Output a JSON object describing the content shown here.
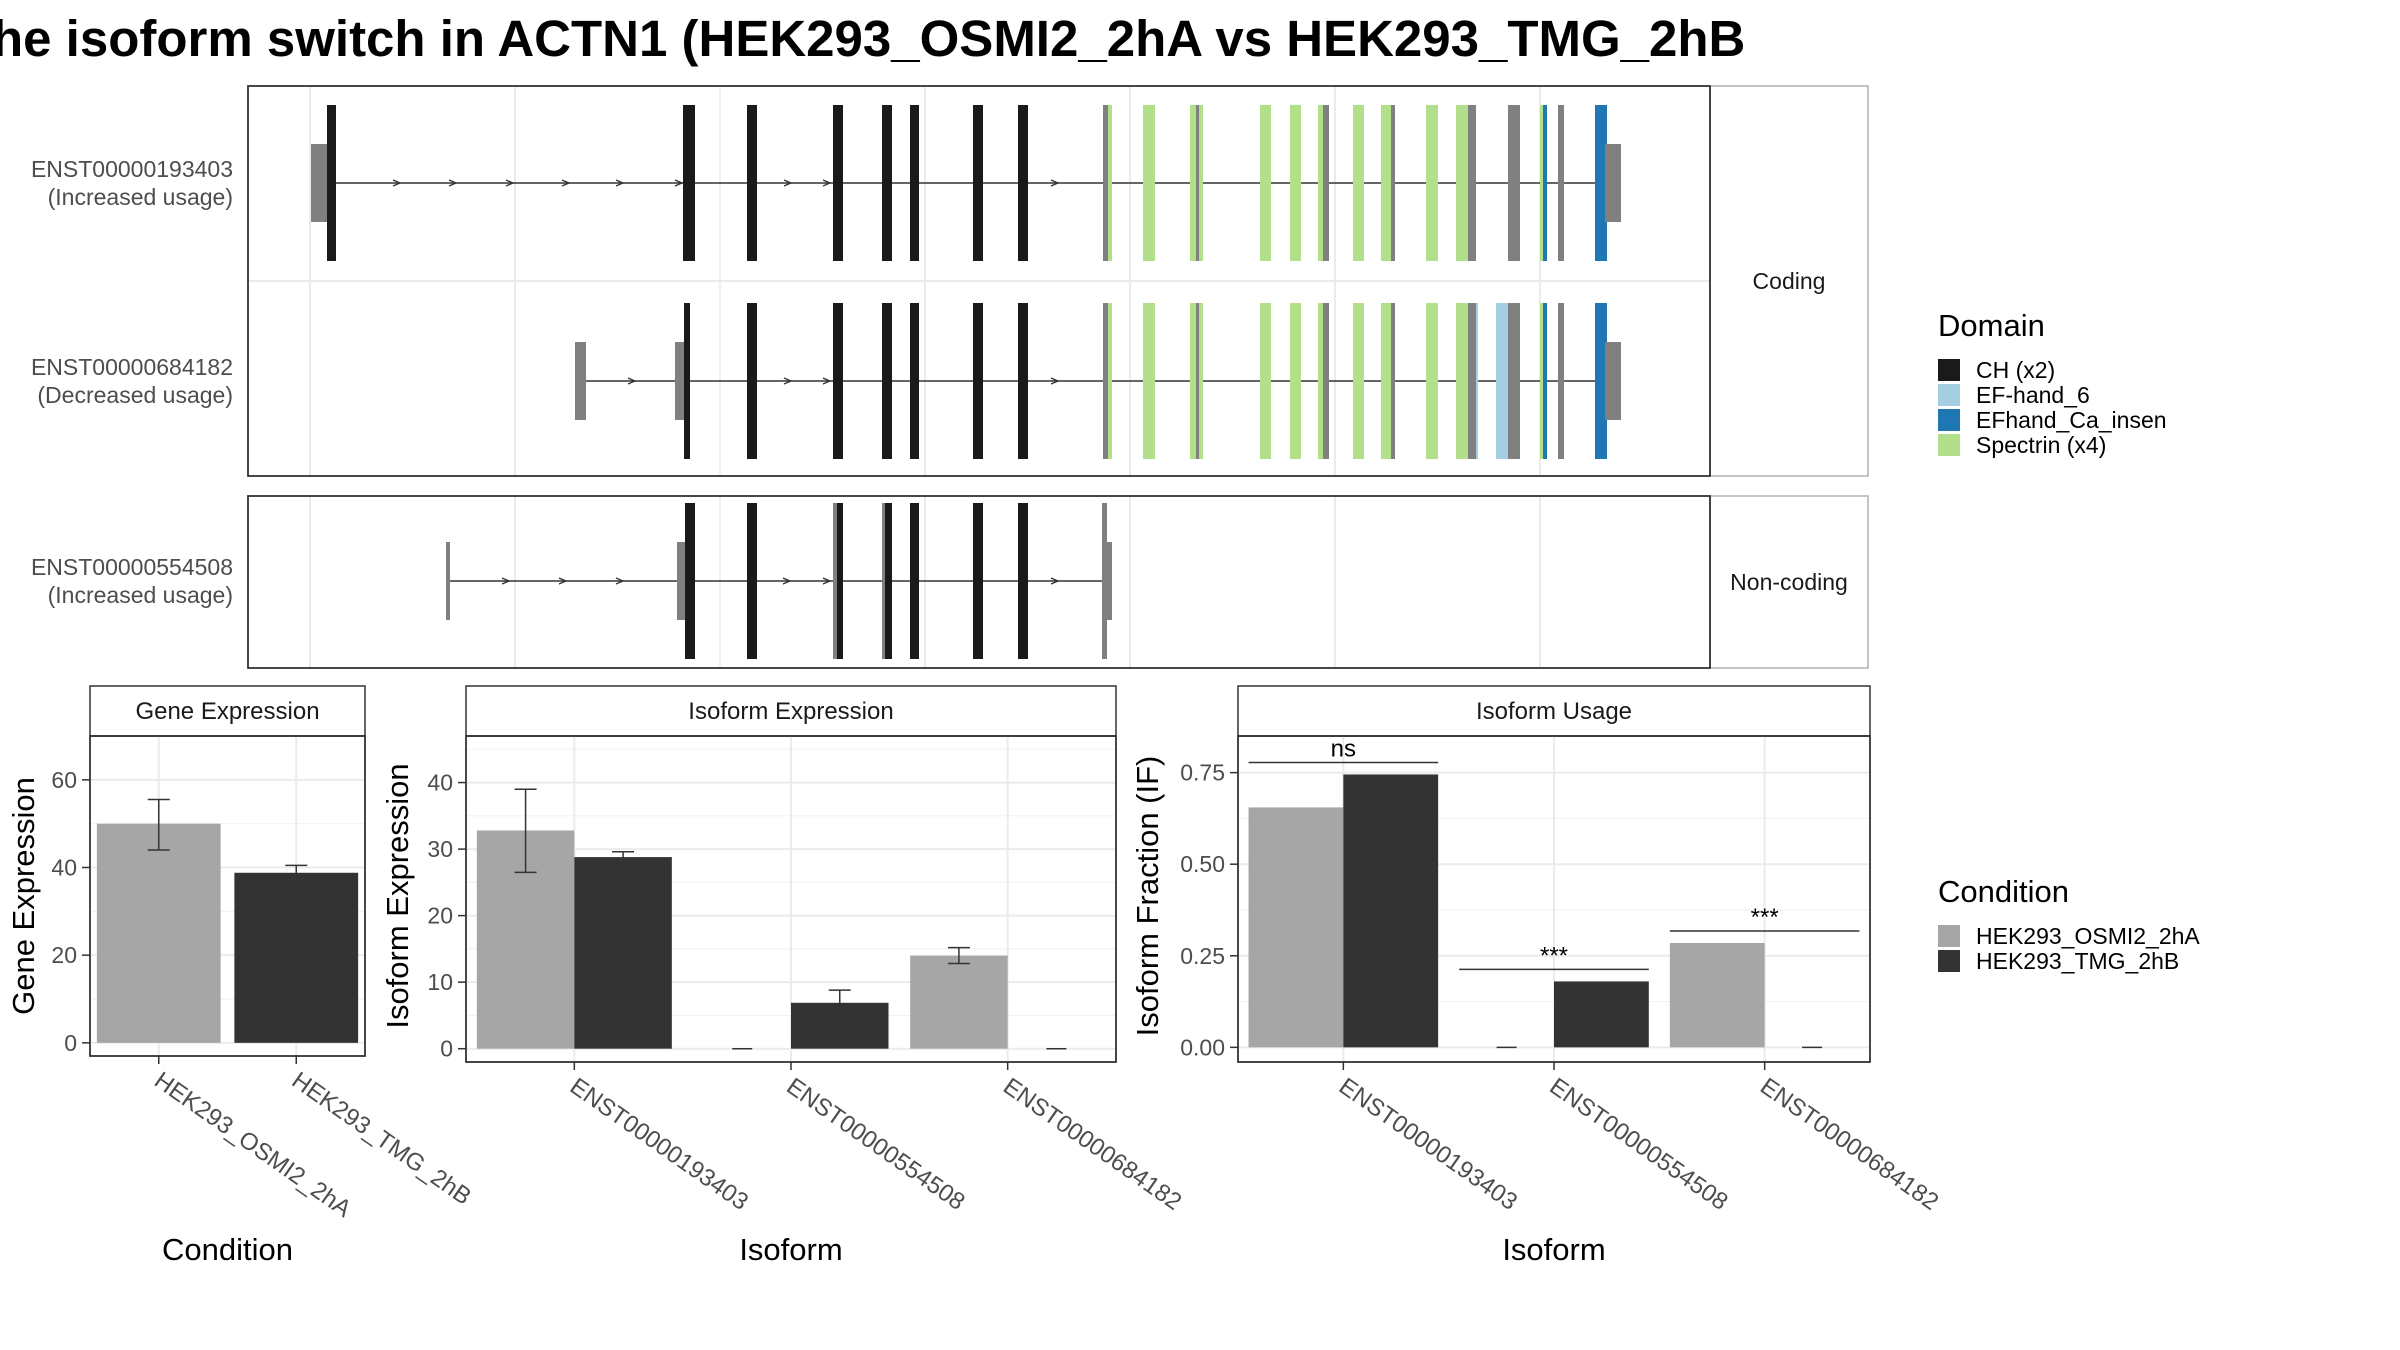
{
  "title": "he isoform switch in ACTN1 (HEK293_OSMI2_2hA vs HEK293_TMG_2hB",
  "structure": {
    "facets": [
      "Coding",
      "Non-coding"
    ],
    "transcripts": [
      {
        "id": "ENST00000193403",
        "usage": "(Increased usage)",
        "facet": "Coding"
      },
      {
        "id": "ENST00000684182",
        "usage": "(Decreased usage)",
        "facet": "Coding"
      },
      {
        "id": "ENST00000554508",
        "usage": "(Increased usage)",
        "facet": "Non-coding"
      }
    ]
  },
  "legends": {
    "domain": {
      "title": "Domain",
      "items": [
        {
          "label": "CH (x2)",
          "color": "#1a1a1a"
        },
        {
          "label": "EF-hand_6",
          "color": "#a6cee3"
        },
        {
          "label": "EFhand_Ca_insen",
          "color": "#1f78b4"
        },
        {
          "label": "Spectrin (x4)",
          "color": "#b2df8a"
        }
      ]
    },
    "condition": {
      "title": "Condition",
      "items": [
        {
          "label": "HEK293_OSMI2_2hA",
          "color": "#a6a6a6"
        },
        {
          "label": "HEK293_TMG_2hB",
          "color": "#333333"
        }
      ]
    }
  },
  "chart_data": [
    {
      "type": "bar",
      "title": "Gene Expression",
      "xlabel": "Condition",
      "ylabel": "Gene Expression",
      "categories": [
        "HEK293_OSMI2_2hA",
        "HEK293_TMG_2hB"
      ],
      "values": [
        50.0,
        38.8
      ],
      "errors": [
        [
          44.0,
          55.5
        ],
        [
          37.0,
          40.5
        ]
      ],
      "yticks": [
        0,
        20,
        40,
        60
      ],
      "ylim": [
        -3,
        70
      ]
    },
    {
      "type": "bar",
      "title": "Isoform Expression",
      "xlabel": "Isoform",
      "ylabel": "Isoform Expression",
      "categories": [
        "ENST00000193403",
        "ENST00000554508",
        "ENST00000684182"
      ],
      "series": [
        {
          "name": "HEK293_OSMI2_2hA",
          "values": [
            32.8,
            0.0,
            14.0
          ],
          "errors": [
            [
              26.5,
              39.0
            ],
            null,
            [
              12.8,
              15.2
            ]
          ]
        },
        {
          "name": "HEK293_TMG_2hB",
          "values": [
            28.8,
            6.9,
            0.0
          ],
          "errors": [
            [
              28.0,
              29.6
            ],
            [
              5.0,
              8.8
            ],
            null
          ]
        }
      ],
      "yticks": [
        0,
        10,
        20,
        30,
        40
      ],
      "ylim": [
        -2,
        47
      ]
    },
    {
      "type": "bar",
      "title": "Isoform Usage",
      "xlabel": "Isoform",
      "ylabel": "Isoform Fraction (IF)",
      "categories": [
        "ENST00000193403",
        "ENST00000554508",
        "ENST00000684182"
      ],
      "series": [
        {
          "name": "HEK293_OSMI2_2hA",
          "values": [
            0.655,
            0.0,
            0.285
          ]
        },
        {
          "name": "HEK293_TMG_2hB",
          "values": [
            0.745,
            0.18,
            0.0
          ]
        }
      ],
      "significance": [
        "ns",
        "***",
        "***"
      ],
      "yticks": [
        "0.00",
        "0.25",
        "0.50",
        "0.75"
      ],
      "ylim": [
        -0.04,
        0.85
      ]
    }
  ]
}
